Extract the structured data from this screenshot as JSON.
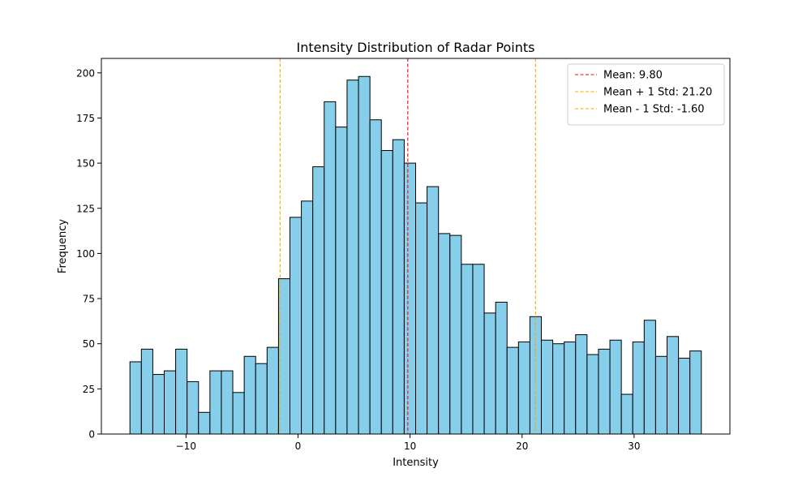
{
  "chart_data": {
    "type": "bar",
    "title": "Intensity Distribution of Radar Points",
    "xlabel": "Intensity",
    "ylabel": "Frequency",
    "xlim": [
      -17.55,
      38.55
    ],
    "ylim": [
      0,
      208
    ],
    "xticks": [
      -10,
      0,
      10,
      20,
      30
    ],
    "xtick_labels": [
      "−10",
      "0",
      "10",
      "20",
      "30"
    ],
    "yticks": [
      0,
      25,
      50,
      75,
      100,
      125,
      150,
      175,
      200
    ],
    "bin_width": 1.02,
    "bin_start": -15,
    "values": [
      40,
      47,
      33,
      35,
      47,
      29,
      12,
      35,
      35,
      23,
      43,
      39,
      48,
      86,
      120,
      129,
      148,
      184,
      170,
      196,
      198,
      174,
      157,
      163,
      150,
      128,
      137,
      111,
      110,
      94,
      94,
      67,
      73,
      48,
      51,
      65,
      52,
      50,
      51,
      55,
      44,
      47,
      52,
      22,
      51,
      63,
      43,
      54,
      42,
      46
    ],
    "bar_color": "#87ceeb",
    "edge_color": "#000000",
    "grid": false,
    "legend_position": "top-right",
    "reference_lines": [
      {
        "label": "Mean: 9.80",
        "x": 9.8,
        "color": "#ff0000"
      },
      {
        "label": "Mean + 1 Std: 21.20",
        "x": 21.2,
        "color": "#ffa500"
      },
      {
        "label": "Mean - 1 Std: -1.60",
        "x": -1.6,
        "color": "#ffa500"
      }
    ]
  }
}
